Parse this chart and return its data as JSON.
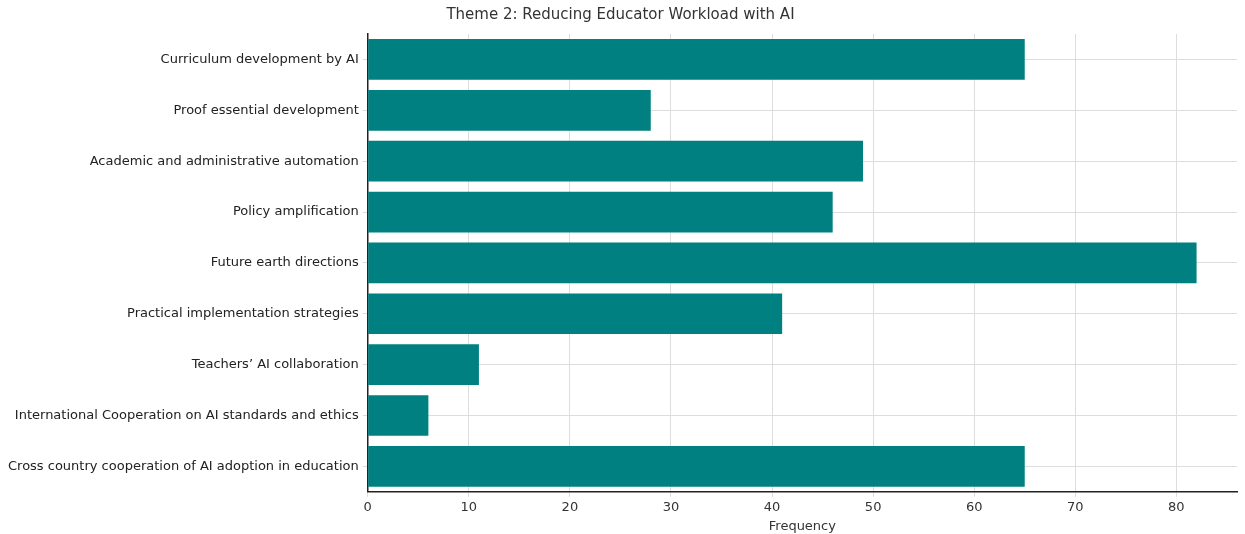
{
  "chart_data": {
    "type": "bar",
    "orientation": "horizontal",
    "title": "Theme 2: Reducing Educator Workload with AI",
    "xlabel": "Frequency",
    "categories": [
      "Curriculum development by AI",
      "Proof essential development",
      "Academic and administrative automation",
      "Policy amplification",
      "Future earth directions",
      "Practical implementation strategies",
      "Teachers’ AI collaboration",
      "International Cooperation on AI standards and ethics",
      "Cross country cooperation of AI adoption in education"
    ],
    "values": [
      65,
      28,
      49,
      46,
      82,
      41,
      11,
      6,
      65
    ],
    "color": "#008080",
    "xlim": [
      0,
      86
    ],
    "xticks": [
      0,
      10,
      20,
      30,
      40,
      50,
      60,
      70,
      80
    ],
    "grid": true
  }
}
